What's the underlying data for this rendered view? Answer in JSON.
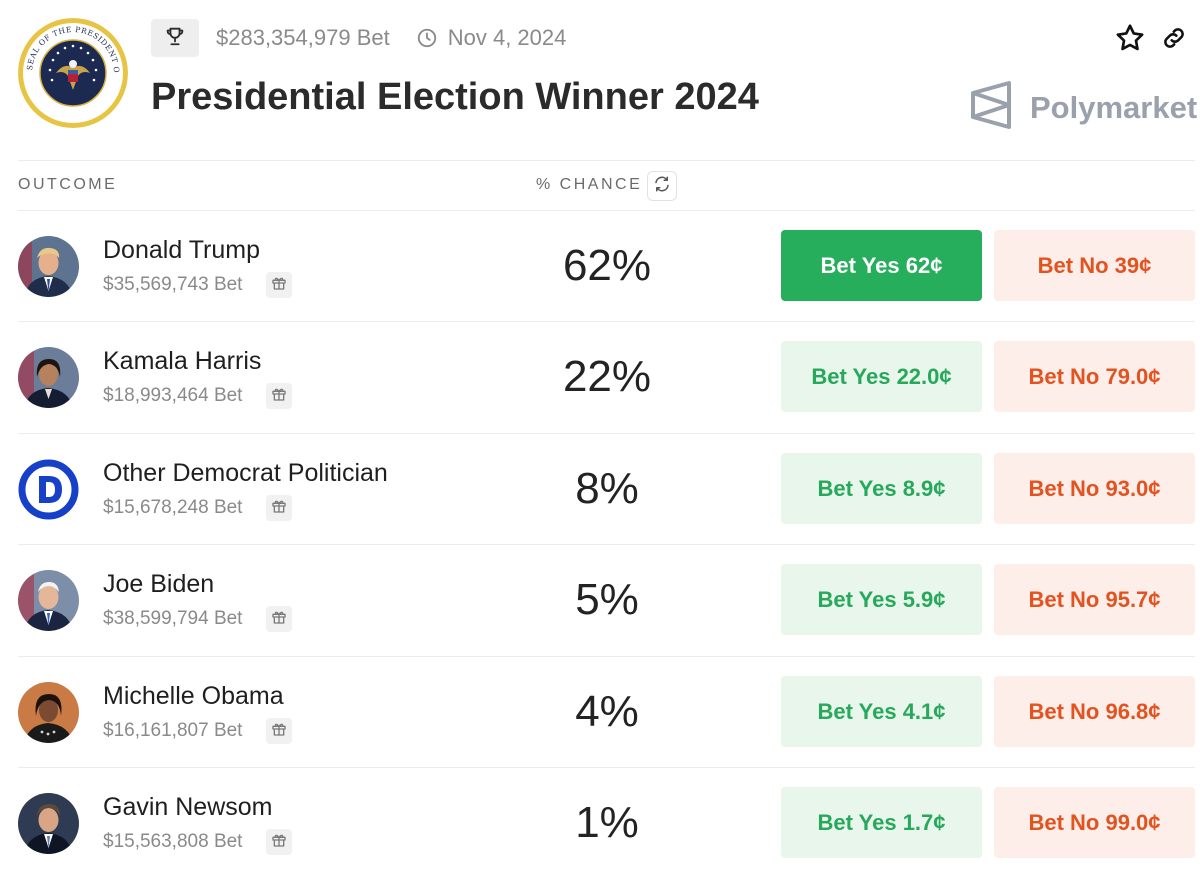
{
  "market": {
    "title": "Presidential Election Winner 2024",
    "volume": "$283,354,979 Bet",
    "date": "Nov 4, 2024",
    "brand": "Polymarket",
    "seal_text": "SEAL OF THE PRESIDENT OF THE UNITED STATES"
  },
  "columns": {
    "outcome": "OUTCOME",
    "chance": "% CHANCE"
  },
  "icons": {
    "trophy": "trophy-icon",
    "clock": "clock-icon",
    "star": "star-icon",
    "link": "link-icon",
    "refresh": "refresh-icon",
    "gift": "gift-icon"
  },
  "colors": {
    "yes_primary": "#27ae5c",
    "yes_text": "#27a85a",
    "yes_bg": "#e8f6ec",
    "no_text": "#e2531f",
    "no_bg": "#fdeeea"
  },
  "outcomes": [
    {
      "name": "Donald Trump",
      "volume": "$35,569,743 Bet",
      "chance": "62%",
      "yes": "Bet Yes 62¢",
      "no": "Bet No 39¢"
    },
    {
      "name": "Kamala Harris",
      "volume": "$18,993,464 Bet",
      "chance": "22%",
      "yes": "Bet Yes 22.0¢",
      "no": "Bet No 79.0¢"
    },
    {
      "name": "Other Democrat Politician",
      "volume": "$15,678,248 Bet",
      "chance": "8%",
      "yes": "Bet Yes 8.9¢",
      "no": "Bet No 93.0¢"
    },
    {
      "name": "Joe Biden",
      "volume": "$38,599,794 Bet",
      "chance": "5%",
      "yes": "Bet Yes 5.9¢",
      "no": "Bet No 95.7¢"
    },
    {
      "name": "Michelle Obama",
      "volume": "$16,161,807 Bet",
      "chance": "4%",
      "yes": "Bet Yes 4.1¢",
      "no": "Bet No 96.8¢"
    },
    {
      "name": "Gavin Newsom",
      "volume": "$15,563,808 Bet",
      "chance": "1%",
      "yes": "Bet Yes 1.7¢",
      "no": "Bet No 99.0¢"
    }
  ]
}
